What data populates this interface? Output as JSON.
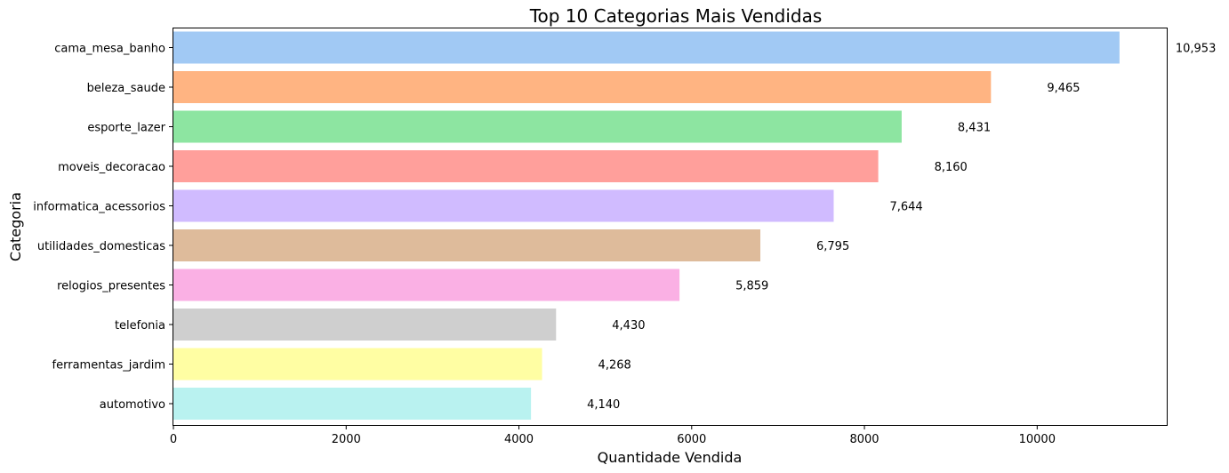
{
  "chart_data": {
    "type": "bar",
    "orientation": "horizontal",
    "title": "Top 10 Categorias Mais Vendidas",
    "xlabel": "Quantidade Vendida",
    "ylabel": "Categoria",
    "xlim": [
      0,
      11500
    ],
    "xticks": [
      0,
      2000,
      4000,
      6000,
      8000,
      10000
    ],
    "xtick_labels": [
      "0",
      "2000",
      "4000",
      "6000",
      "8000",
      "10000"
    ],
    "grid": false,
    "categories": [
      "cama_mesa_banho",
      "beleza_saude",
      "esporte_lazer",
      "moveis_decoracao",
      "informatica_acessorios",
      "utilidades_domesticas",
      "relogios_presentes",
      "telefonia",
      "ferramentas_jardim",
      "automotivo"
    ],
    "values": [
      10953,
      9465,
      8431,
      8160,
      7644,
      6795,
      5859,
      4430,
      4268,
      4140
    ],
    "value_labels": [
      "10,953",
      "9,465",
      "8,431",
      "8,160",
      "7,644",
      "6,795",
      "5,859",
      "4,430",
      "4,268",
      "4,140"
    ],
    "colors": [
      "#a1c9f4",
      "#ffb482",
      "#8de5a1",
      "#ff9f9b",
      "#d0bbff",
      "#debb9b",
      "#fab0e4",
      "#cfcfcf",
      "#fffea3",
      "#b9f2f0"
    ]
  }
}
